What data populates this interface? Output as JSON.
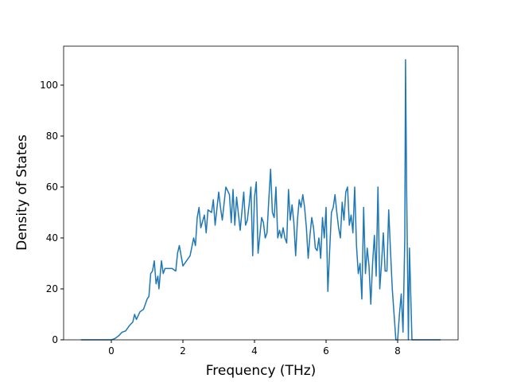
{
  "chart_data": {
    "type": "line",
    "xlabel": "Frequency (THz)",
    "ylabel": "Density of States",
    "xlim": [
      -1.333,
      9.689
    ],
    "ylim": [
      0,
      115.3
    ],
    "xticks": [
      0,
      2,
      4,
      6,
      8
    ],
    "yticks": [
      0,
      20,
      40,
      60,
      80,
      100
    ],
    "series": [
      {
        "color": "#1f77b4",
        "x": [
          -0.85,
          -0.5,
          0,
          0.1,
          0.2,
          0.3,
          0.4,
          0.5,
          0.6,
          0.65,
          0.7,
          0.8,
          0.9,
          1,
          1.05,
          1.1,
          1.15,
          1.2,
          1.25,
          1.3,
          1.33,
          1.4,
          1.45,
          1.5,
          1.6,
          1.7,
          1.8,
          1.85,
          1.9,
          2,
          2.1,
          2.2,
          2.3,
          2.35,
          2.4,
          2.45,
          2.5,
          2.6,
          2.65,
          2.7,
          2.8,
          2.85,
          2.9,
          3,
          3.05,
          3.1,
          3.2,
          3.3,
          3.35,
          3.4,
          3.45,
          3.5,
          3.6,
          3.7,
          3.75,
          3.8,
          3.85,
          3.9,
          3.95,
          4,
          4.05,
          4.1,
          4.2,
          4.25,
          4.3,
          4.35,
          4.4,
          4.45,
          4.5,
          4.55,
          4.6,
          4.65,
          4.7,
          4.75,
          4.8,
          4.85,
          4.9,
          4.95,
          5,
          5.05,
          5.1,
          5.15,
          5.2,
          5.25,
          5.3,
          5.35,
          5.4,
          5.45,
          5.5,
          5.55,
          5.6,
          5.65,
          5.7,
          5.75,
          5.8,
          5.85,
          5.9,
          5.95,
          6,
          6.05,
          6.1,
          6.15,
          6.2,
          6.25,
          6.3,
          6.35,
          6.4,
          6.45,
          6.5,
          6.55,
          6.6,
          6.65,
          6.7,
          6.75,
          6.8,
          6.85,
          6.9,
          6.95,
          7,
          7.05,
          7.1,
          7.15,
          7.2,
          7.25,
          7.3,
          7.35,
          7.4,
          7.45,
          7.5,
          7.55,
          7.6,
          7.65,
          7.7,
          7.75,
          7.8,
          7.85,
          7.9,
          7.95,
          8,
          8.05,
          8.1,
          8.15,
          8.2,
          8.22,
          8.25,
          8.3,
          8.33,
          8.4,
          8.5,
          9.2
        ],
        "values": [
          0,
          0,
          0,
          0.5,
          1.5,
          3,
          3.5,
          5.5,
          7,
          10,
          8,
          11,
          12,
          16,
          17,
          26,
          27,
          31,
          22,
          25,
          20,
          31,
          26,
          28,
          28,
          28,
          27,
          34,
          37,
          29,
          31,
          33,
          40,
          37,
          48,
          52,
          44,
          49,
          42,
          51,
          50,
          55,
          45,
          58,
          52,
          47,
          60,
          57,
          46,
          59,
          45,
          56,
          43,
          58,
          45,
          47,
          53,
          60,
          33,
          56,
          62,
          34,
          48,
          46,
          40,
          42,
          55,
          67,
          50,
          48,
          60,
          40,
          43,
          40,
          44,
          40,
          38,
          59,
          47,
          53,
          46,
          33,
          47,
          55,
          52,
          57,
          52,
          44,
          32,
          41,
          48,
          44,
          36,
          35,
          40,
          32,
          48,
          40,
          52,
          19,
          35,
          50,
          52,
          57,
          50,
          44,
          40,
          54,
          47,
          58,
          60,
          45,
          49,
          42,
          60,
          37,
          26,
          30,
          16,
          52,
          26,
          36,
          29,
          14,
          30,
          41,
          25,
          60,
          20,
          30,
          42,
          27,
          27,
          51,
          35,
          20,
          10,
          0,
          0,
          10,
          18,
          3,
          40,
          110,
          60,
          0,
          36,
          0,
          0,
          0
        ]
      }
    ]
  }
}
